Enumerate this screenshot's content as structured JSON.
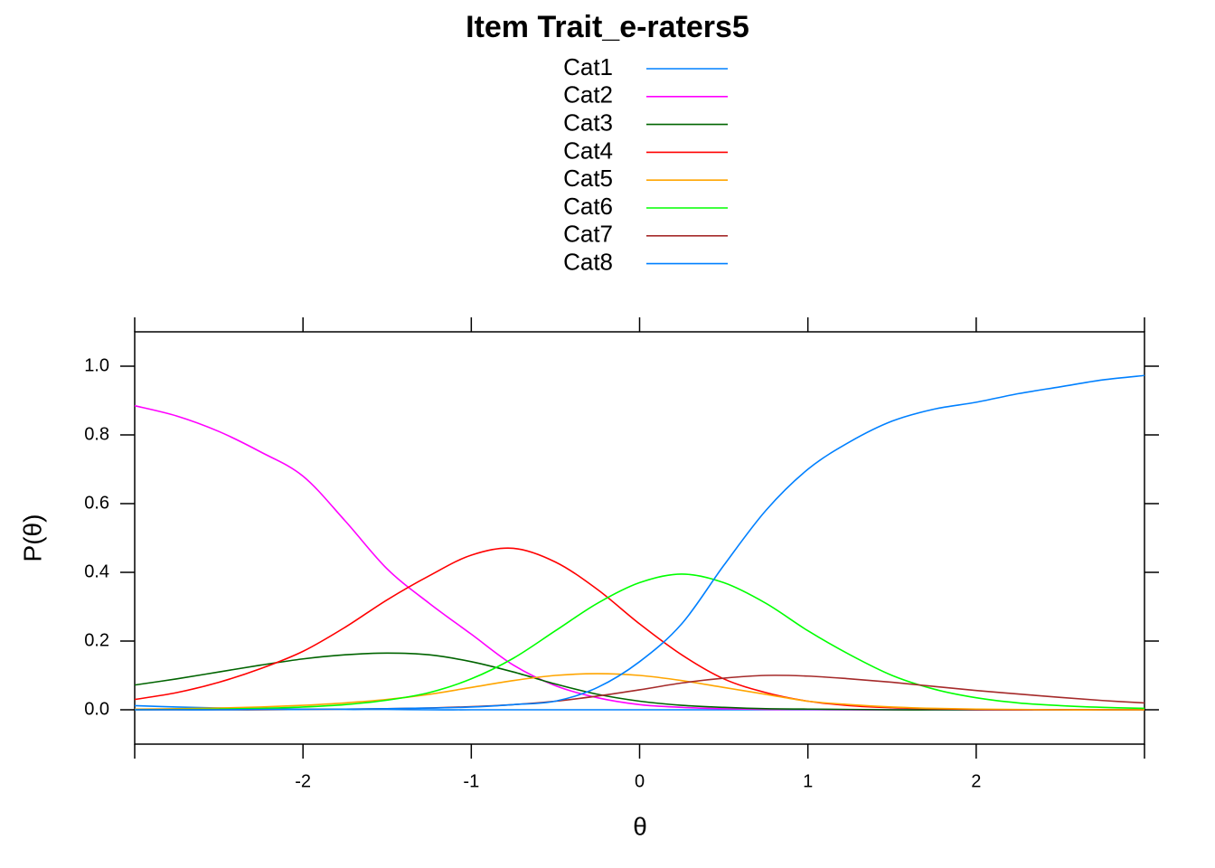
{
  "chart_data": {
    "type": "line",
    "title": "Item Trait_e-raters5",
    "x_label": "θ",
    "y_label": "P(θ)",
    "x": [
      -3,
      -2.75,
      -2.5,
      -2.25,
      -2,
      -1.75,
      -1.5,
      -1.25,
      -1,
      -0.75,
      -0.5,
      -0.25,
      0,
      0.25,
      0.5,
      0.75,
      1,
      1.25,
      1.5,
      1.75,
      2,
      2.25,
      2.5,
      2.75,
      3
    ],
    "series": [
      {
        "name": "Cat1",
        "color": "#0080ff",
        "values": [
          0.012,
          0.008,
          0.005,
          0.003,
          0.002,
          0.001,
          0.001,
          0,
          0,
          0,
          0,
          0,
          0,
          0,
          0,
          0,
          0,
          0,
          0,
          0,
          0,
          0,
          0,
          0,
          0
        ]
      },
      {
        "name": "Cat2",
        "color": "#ff00ff",
        "values": [
          0.885,
          0.855,
          0.81,
          0.75,
          0.68,
          0.55,
          0.41,
          0.31,
          0.22,
          0.13,
          0.07,
          0.035,
          0.015,
          0.007,
          0.003,
          0.001,
          0.001,
          0,
          0,
          0,
          0,
          0,
          0,
          0,
          0
        ]
      },
      {
        "name": "Cat3",
        "color": "#006400",
        "values": [
          0.072,
          0.09,
          0.11,
          0.13,
          0.148,
          0.16,
          0.165,
          0.16,
          0.14,
          0.11,
          0.075,
          0.045,
          0.025,
          0.013,
          0.007,
          0.003,
          0.002,
          0.001,
          0,
          0,
          0,
          0,
          0,
          0,
          0
        ]
      },
      {
        "name": "Cat4",
        "color": "#ff0000",
        "values": [
          0.03,
          0.05,
          0.08,
          0.12,
          0.17,
          0.24,
          0.32,
          0.39,
          0.45,
          0.47,
          0.43,
          0.35,
          0.25,
          0.16,
          0.09,
          0.05,
          0.025,
          0.012,
          0.006,
          0.003,
          0.001,
          0,
          0,
          0,
          0
        ]
      },
      {
        "name": "Cat5",
        "color": "#ffa500",
        "values": [
          0.002,
          0.003,
          0.005,
          0.008,
          0.013,
          0.02,
          0.03,
          0.045,
          0.065,
          0.085,
          0.1,
          0.105,
          0.1,
          0.085,
          0.065,
          0.045,
          0.025,
          0.015,
          0.008,
          0.004,
          0.002,
          0.001,
          0,
          0,
          0
        ]
      },
      {
        "name": "Cat6",
        "color": "#00ff00",
        "values": [
          0,
          0.001,
          0.002,
          0.004,
          0.008,
          0.015,
          0.028,
          0.05,
          0.09,
          0.15,
          0.23,
          0.31,
          0.37,
          0.395,
          0.37,
          0.31,
          0.23,
          0.16,
          0.1,
          0.06,
          0.035,
          0.02,
          0.012,
          0.007,
          0.004
        ]
      },
      {
        "name": "Cat7",
        "color": "#a52a2a",
        "values": [
          0,
          0,
          0,
          0,
          0.001,
          0.002,
          0.003,
          0.005,
          0.009,
          0.015,
          0.025,
          0.04,
          0.058,
          0.078,
          0.092,
          0.1,
          0.098,
          0.09,
          0.08,
          0.068,
          0.056,
          0.046,
          0.036,
          0.027,
          0.02
        ]
      },
      {
        "name": "Cat8",
        "color": "#0080ff",
        "values": [
          0,
          0,
          0,
          0.001,
          0.001,
          0.002,
          0.003,
          0.005,
          0.008,
          0.015,
          0.025,
          0.065,
          0.14,
          0.25,
          0.42,
          0.58,
          0.7,
          0.78,
          0.84,
          0.875,
          0.895,
          0.92,
          0.94,
          0.96,
          0.973
        ]
      }
    ],
    "xlim": [
      -3,
      3
    ],
    "ylim": [
      -0.1,
      1.1
    ],
    "xticks": [
      -2,
      -1,
      0,
      1,
      2
    ],
    "yticks": [
      {
        "value": 0,
        "label": "0.0"
      },
      {
        "value": 0.2,
        "label": "0.2"
      },
      {
        "value": 0.4,
        "label": "0.4"
      },
      {
        "value": 0.6,
        "label": "0.6"
      },
      {
        "value": 0.8,
        "label": "0.8"
      },
      {
        "value": 1,
        "label": "1.0"
      }
    ],
    "legend": "top"
  }
}
